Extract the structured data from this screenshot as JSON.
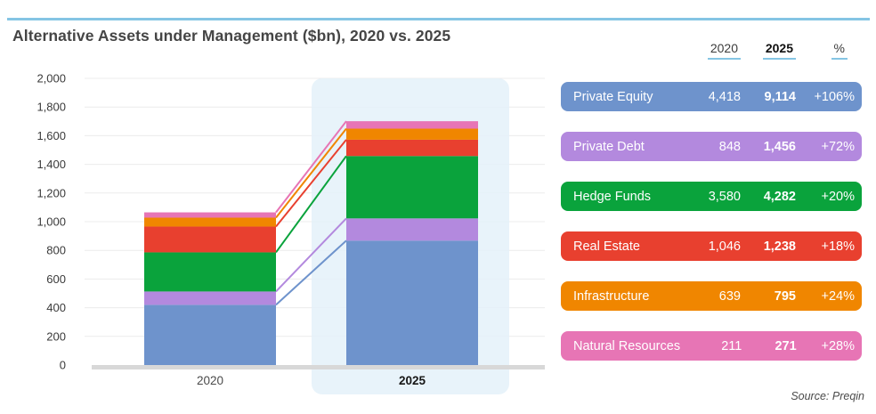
{
  "page": {
    "title": "Alternative Assets under Management ($bn), 2020 vs. 2025",
    "source": "Source: Preqin",
    "accent_color": "#85c5e4"
  },
  "table": {
    "headers": [
      "2020",
      "2025",
      "%"
    ],
    "rows": [
      {
        "label": "Private Equity",
        "v2020": "4,418",
        "v2025": "9,114",
        "pct": "+106%",
        "color": "#6e93cc"
      },
      {
        "label": "Private Debt",
        "v2020": "848",
        "v2025": "1,456",
        "pct": "+72%",
        "color": "#b389de"
      },
      {
        "label": "Hedge Funds",
        "v2020": "3,580",
        "v2025": "4,282",
        "pct": "+20%",
        "color": "#0aa33c"
      },
      {
        "label": "Real Estate",
        "v2020": "1,046",
        "v2025": "1,238",
        "pct": "+18%",
        "color": "#e8402f"
      },
      {
        "label": "Infrastructure",
        "v2020": "639",
        "v2025": "795",
        "pct": "+24%",
        "color": "#f08600"
      },
      {
        "label": "Natural Resources",
        "v2020": "211",
        "v2025": "271",
        "pct": "+28%",
        "color": "#e775b5"
      }
    ]
  },
  "chart_data": {
    "type": "bar",
    "stacked": true,
    "title": "Alternative Assets under Management ($bn), 2020 vs. 2025",
    "categories": [
      "2020",
      "2025"
    ],
    "series": [
      {
        "name": "Private Equity",
        "color": "#6e93cc",
        "values": [
          4418,
          9114
        ],
        "bar_values_axis_units": [
          420,
          868
        ]
      },
      {
        "name": "Private Debt",
        "color": "#b389de",
        "values": [
          848,
          1456
        ],
        "bar_values_axis_units": [
          93,
          155
        ]
      },
      {
        "name": "Hedge Funds",
        "color": "#0aa33c",
        "values": [
          3580,
          4282
        ],
        "bar_values_axis_units": [
          273,
          435
        ]
      },
      {
        "name": "Real Estate",
        "color": "#e8402f",
        "values": [
          1046,
          1238
        ],
        "bar_values_axis_units": [
          180,
          114
        ]
      },
      {
        "name": "Infrastructure",
        "color": "#f08600",
        "values": [
          639,
          795
        ],
        "bar_values_axis_units": [
          62,
          77
        ]
      },
      {
        "name": "Natural Resources",
        "color": "#e775b5",
        "values": [
          211,
          271
        ],
        "bar_values_axis_units": [
          37,
          52
        ]
      }
    ],
    "ylabel": "",
    "xlabel": "",
    "ylim": [
      0,
      2000
    ],
    "ytick_step": 200,
    "grid": true,
    "legend_position": "right-table",
    "highlight_category": "2025",
    "highlight_band_color": "#e4f1f9",
    "connector_lines": true
  }
}
